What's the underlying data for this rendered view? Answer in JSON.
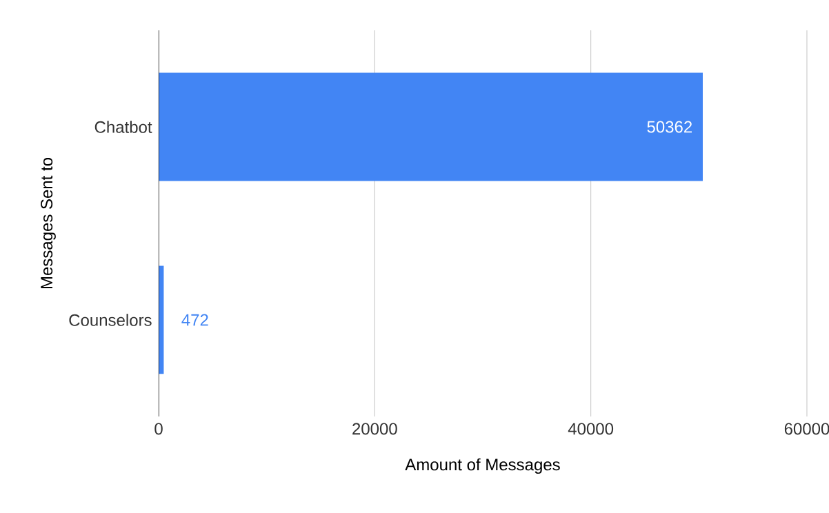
{
  "chart_data": {
    "type": "bar",
    "orientation": "horizontal",
    "categories": [
      "Chatbot",
      "Counselors"
    ],
    "values": [
      50362,
      472
    ],
    "color": "#4285f4",
    "xlabel": "Amount of Messages",
    "ylabel": "Messages Sent to",
    "xlim": [
      0,
      60000
    ],
    "xticks": [
      0,
      20000,
      40000,
      60000
    ],
    "grid": "x",
    "data_labels": true
  }
}
